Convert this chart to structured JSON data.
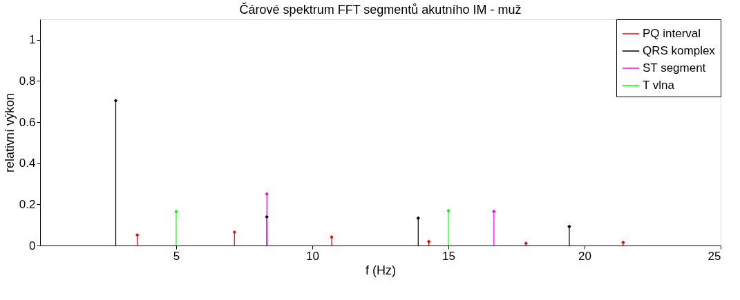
{
  "chart_data": {
    "type": "lollipop",
    "title": "Čárové spektrum FFT segmentů akutního IM - muž",
    "xlabel": "f (Hz)",
    "ylabel": "relativní výkon",
    "xlim": [
      0,
      25
    ],
    "xticks": [
      5,
      10,
      15,
      20,
      25
    ],
    "ylim": [
      0,
      1.1
    ],
    "yticks": [
      0,
      0.2,
      0.4,
      0.6,
      0.8,
      1
    ],
    "grid": false,
    "legend": "top right",
    "marker": "diamond",
    "series": [
      {
        "name": "PQ interval",
        "color": "#ff0000",
        "x": [
          3.57,
          7.14,
          10.71,
          14.28,
          17.85,
          21.42
        ],
        "values": [
          0.051,
          0.065,
          0.041,
          0.019,
          0.011,
          0.015
        ]
      },
      {
        "name": "QRS komplex",
        "color": "#000000",
        "x": [
          2.78,
          8.33,
          13.89,
          19.44
        ],
        "values": [
          0.704,
          0.139,
          0.133,
          0.092
        ]
      },
      {
        "name": "ST segment",
        "color": "#ff00ff",
        "x": [
          8.33,
          16.67
        ],
        "values": [
          0.251,
          0.166
        ]
      },
      {
        "name": "T vlna",
        "color": "#00ff00",
        "x": [
          5.0,
          15.0
        ],
        "values": [
          0.165,
          0.169
        ]
      }
    ]
  }
}
